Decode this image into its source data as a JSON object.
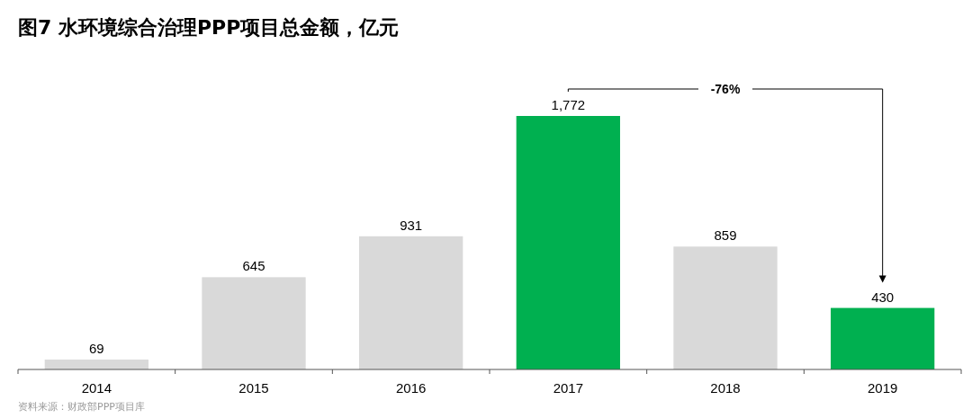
{
  "chart_data": {
    "type": "bar",
    "title": "图7 水环境综合治理PPP项目总金额，亿元",
    "categories": [
      "2014",
      "2015",
      "2016",
      "2017",
      "2018",
      "2019"
    ],
    "values": [
      69,
      645,
      931,
      1772,
      859,
      430
    ],
    "colors": [
      "#d9d9d9",
      "#d9d9d9",
      "#d9d9d9",
      "#00b050",
      "#d9d9d9",
      "#00b050"
    ],
    "value_labels": [
      "69",
      "645",
      "931",
      "1,772",
      "859",
      "430"
    ],
    "annotations": [
      "-76%",
      "资料来源：财政部PPP项目库"
    ]
  }
}
